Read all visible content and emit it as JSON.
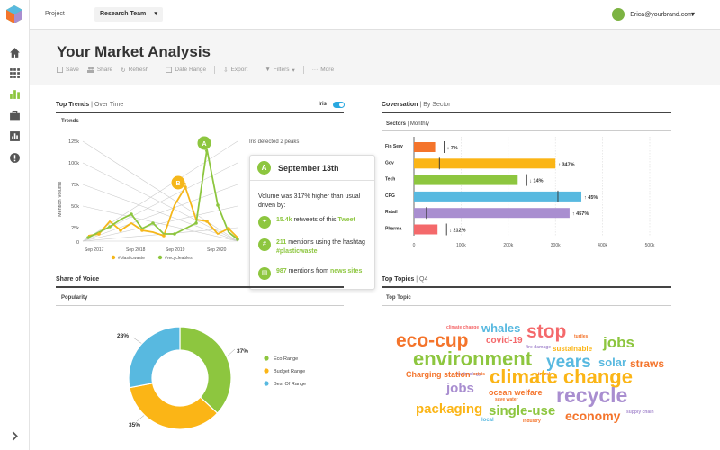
{
  "topbar": {
    "project_label": "Project",
    "project_value": "Research Team",
    "user_email": "Erica@yourbrand.com"
  },
  "page": {
    "title": "Your Market Analysis"
  },
  "toolbar": {
    "save": "Save",
    "share": "Share",
    "refresh": "Refresh",
    "date_range": "Date Range",
    "export": "Export",
    "filters": "Filters",
    "more": "More"
  },
  "trends": {
    "title": "Top Trends",
    "subtitle": "Over Time",
    "toggle_label": "Iris",
    "sub": "Trends",
    "ylabel": "Mention Volume",
    "yticks": [
      "125k",
      "100k",
      "75k",
      "50k",
      "25k",
      "0"
    ],
    "xticks": [
      "Sep 2017",
      "Sep 2018",
      "Sep 2019",
      "Sep 2020"
    ],
    "legend": [
      "#plasticwaste",
      "#recycleables"
    ],
    "marker_a": "A",
    "marker_b": "B",
    "iris_note": "Iris detected 2 peaks"
  },
  "tooltip": {
    "marker": "A",
    "date": "September 13th",
    "text": "Volume was 317% higher than usual driven by:",
    "r1_num": "15.4k",
    "r1_text": " retweets of this ",
    "r1_link": "Tweet",
    "r2_num": "211",
    "r2_text": " mentions using the hashtag ",
    "r2_link": "#plasticwaste",
    "r3_num": "987",
    "r3_text": " mentions from ",
    "r3_link": "news sites"
  },
  "conversation": {
    "title": "Coversation",
    "subtitle": "By Sector",
    "sub_a": "Sectors",
    "sub_b": "Monthly",
    "xticks": [
      "0",
      "100k",
      "200k",
      "300k",
      "400k",
      "500k"
    ]
  },
  "chart_data": [
    {
      "type": "line",
      "x": [
        "Sep 2017",
        "Sep 2018",
        "Sep 2019",
        "Sep 2020"
      ],
      "ylim": [
        0,
        125000
      ],
      "ylabel": "Mention Volume",
      "series": [
        {
          "name": "#plasticwaste",
          "color": "#f5b71b"
        },
        {
          "name": "#recycleables",
          "color": "#8dc63f"
        }
      ]
    },
    {
      "type": "bar",
      "categories": [
        "Fin Serv",
        "Gov",
        "Tech",
        "CPG",
        "Retail",
        "Pharma"
      ],
      "values": [
        45000,
        300000,
        220000,
        355000,
        330000,
        50000
      ],
      "changes": [
        "7%",
        "347%",
        "14%",
        "45%",
        "457%",
        "212%"
      ],
      "directions": [
        "down",
        "up",
        "down",
        "up",
        "up",
        "down"
      ],
      "colors": [
        "#f4742b",
        "#fbb516",
        "#8dc63f",
        "#58b9e0",
        "#a98ed0",
        "#f4696b"
      ],
      "xlim": [
        0,
        500000
      ]
    },
    {
      "type": "pie",
      "labels": [
        "Eco Range",
        "Budget Range",
        "Best Of Range"
      ],
      "values": [
        37,
        35,
        28
      ],
      "colors": [
        "#8dc63f",
        "#fbb516",
        "#58b9e0"
      ]
    }
  ],
  "sov": {
    "title": "Share of Voice",
    "sub": "Popularity",
    "pct_eco": "37%",
    "pct_budget": "35%",
    "pct_best": "28%",
    "legend": [
      "Eco Range",
      "Budget Range",
      "Best Of Range"
    ]
  },
  "topics": {
    "title": "Top Topics",
    "subtitle": "Q4",
    "sub": "Top Topic"
  },
  "words": {
    "climate_change_small": "climate change",
    "whales": "whales",
    "stop": "stop",
    "turtles": "turtles",
    "eco_cup": "eco-cup",
    "covid": "covid-19",
    "sustainable": "sustainable",
    "jobs_big": "jobs",
    "fire_damage": "fire damage",
    "environment": "environment",
    "years": "years",
    "solar": "solar",
    "straws": "straws",
    "technology": "technology",
    "crisis": "crisis",
    "travel": "travel",
    "charging": "Charging station",
    "climate_change": "climate change",
    "jobs": "jobs",
    "ocean_welfare": "ocean welfare",
    "recycle": "recycle",
    "save_water": "save water",
    "packaging": "packaging",
    "single_use": "single-use",
    "economy": "economy",
    "supply_chain": "supply chain",
    "local": "local",
    "industry": "industry"
  }
}
